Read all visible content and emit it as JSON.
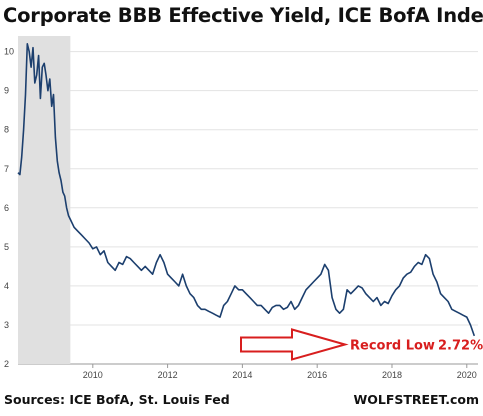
{
  "chart_data": {
    "type": "line",
    "title": "Corporate BBB Effective Yield, ICE BofA Index",
    "xlabel": "",
    "ylabel": "",
    "ylim": [
      2,
      10.4
    ],
    "xlim": [
      2008.0,
      2020.3
    ],
    "y_ticks": [
      "2",
      "3",
      "4",
      "5",
      "6",
      "7",
      "8",
      "9",
      "10"
    ],
    "x_ticks": [
      "2010",
      "2012",
      "2014",
      "2016",
      "2018",
      "2020"
    ],
    "grid": "horizontal",
    "recession_shading": [
      2008.0,
      2009.4
    ],
    "series": [
      {
        "name": "",
        "color": "#1c3f6e",
        "x": [
          2008.0,
          2008.05,
          2008.1,
          2008.15,
          2008.2,
          2008.25,
          2008.3,
          2008.35,
          2008.4,
          2008.45,
          2008.5,
          2008.55,
          2008.6,
          2008.65,
          2008.7,
          2008.75,
          2008.8,
          2008.85,
          2008.9,
          2008.95,
          2009.0,
          2009.05,
          2009.1,
          2009.15,
          2009.2,
          2009.25,
          2009.3,
          2009.35,
          2009.4,
          2009.5,
          2009.6,
          2009.7,
          2009.8,
          2009.9,
          2010.0,
          2010.1,
          2010.2,
          2010.3,
          2010.4,
          2010.5,
          2010.6,
          2010.7,
          2010.8,
          2010.9,
          2011.0,
          2011.1,
          2011.2,
          2011.3,
          2011.4,
          2011.5,
          2011.6,
          2011.7,
          2011.8,
          2011.9,
          2012.0,
          2012.1,
          2012.2,
          2012.3,
          2012.4,
          2012.5,
          2012.6,
          2012.7,
          2012.8,
          2012.9,
          2013.0,
          2013.1,
          2013.2,
          2013.3,
          2013.4,
          2013.5,
          2013.6,
          2013.7,
          2013.8,
          2013.9,
          2014.0,
          2014.1,
          2014.2,
          2014.3,
          2014.4,
          2014.5,
          2014.6,
          2014.7,
          2014.8,
          2014.9,
          2015.0,
          2015.1,
          2015.2,
          2015.3,
          2015.4,
          2015.5,
          2015.6,
          2015.7,
          2015.8,
          2015.9,
          2016.0,
          2016.1,
          2016.2,
          2016.3,
          2016.4,
          2016.5,
          2016.6,
          2016.7,
          2016.8,
          2016.9,
          2017.0,
          2017.1,
          2017.2,
          2017.3,
          2017.4,
          2017.5,
          2017.6,
          2017.7,
          2017.8,
          2017.9,
          2018.0,
          2018.1,
          2018.2,
          2018.3,
          2018.4,
          2018.5,
          2018.6,
          2018.7,
          2018.8,
          2018.9,
          2019.0,
          2019.1,
          2019.2,
          2019.3,
          2019.4,
          2019.5,
          2019.6,
          2019.7,
          2019.8,
          2019.9,
          2020.0,
          2020.1,
          2020.2
        ],
        "values": [
          6.9,
          6.85,
          7.3,
          8.0,
          8.9,
          10.2,
          10.0,
          9.6,
          10.1,
          9.2,
          9.4,
          9.9,
          8.8,
          9.6,
          9.7,
          9.4,
          9.0,
          9.3,
          8.6,
          8.9,
          7.8,
          7.2,
          6.9,
          6.7,
          6.4,
          6.3,
          6.0,
          5.8,
          5.7,
          5.5,
          5.4,
          5.3,
          5.2,
          5.1,
          4.95,
          5.0,
          4.8,
          4.9,
          4.6,
          4.5,
          4.4,
          4.6,
          4.55,
          4.75,
          4.7,
          4.6,
          4.5,
          4.4,
          4.5,
          4.4,
          4.3,
          4.6,
          4.8,
          4.6,
          4.3,
          4.2,
          4.1,
          4.0,
          4.3,
          4.0,
          3.8,
          3.7,
          3.5,
          3.4,
          3.4,
          3.35,
          3.3,
          3.25,
          3.2,
          3.5,
          3.6,
          3.8,
          4.0,
          3.9,
          3.9,
          3.8,
          3.7,
          3.6,
          3.5,
          3.5,
          3.4,
          3.3,
          3.45,
          3.5,
          3.5,
          3.4,
          3.45,
          3.6,
          3.4,
          3.5,
          3.7,
          3.9,
          4.0,
          4.1,
          4.2,
          4.3,
          4.55,
          4.4,
          3.7,
          3.4,
          3.3,
          3.4,
          3.9,
          3.8,
          3.9,
          4.0,
          3.95,
          3.8,
          3.7,
          3.6,
          3.7,
          3.5,
          3.6,
          3.55,
          3.75,
          3.9,
          4.0,
          4.2,
          4.3,
          4.35,
          4.5,
          4.6,
          4.55,
          4.8,
          4.7,
          4.3,
          4.1,
          3.8,
          3.7,
          3.6,
          3.4,
          3.35,
          3.3,
          3.25,
          3.2,
          3.0,
          2.72
        ]
      }
    ],
    "annotation": {
      "label": "Record Low",
      "value_label": "2.72%",
      "color": "#d81e1e"
    }
  },
  "source": "Sources: ICE BofA, St. Louis Fed",
  "brand": "WOLFSTREET.com"
}
